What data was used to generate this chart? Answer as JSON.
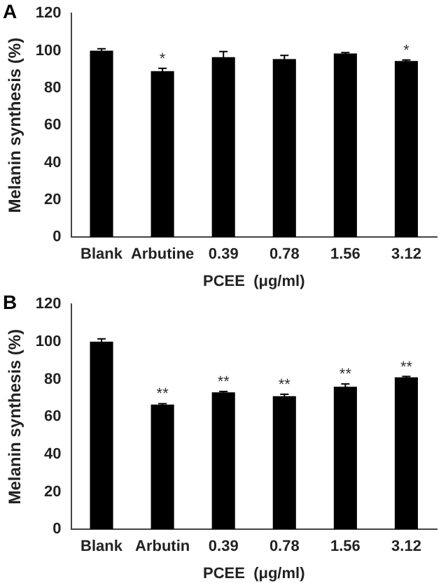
{
  "chart_data": [
    {
      "type": "bar",
      "title": "A",
      "xlabel": "PCEE  (μg/ml)",
      "ylabel": "Melanin synthesis (%)",
      "categories": [
        "Blank",
        "Arbutine",
        "0.39",
        "0.78",
        "1.56",
        "3.12"
      ],
      "values": [
        100,
        89,
        96.5,
        95.5,
        98.5,
        94.5
      ],
      "errors": [
        1,
        1.5,
        3,
        2,
        0.5,
        0.5
      ],
      "color": "#000000",
      "ylim": [
        0,
        120
      ],
      "yticks": [
        0,
        20,
        40,
        60,
        80,
        100,
        120
      ],
      "grid": false,
      "legend": false,
      "annotations": [
        {
          "text": "*",
          "x": "Arbutine",
          "y": 90.5
        },
        {
          "text": "*",
          "x": "3.12",
          "y": 95
        }
      ]
    },
    {
      "type": "bar",
      "title": "B",
      "xlabel": "PCEE  (μg/ml)",
      "ylabel": "Melanin synthesis (%)",
      "categories": [
        "Blank",
        "Arbutin",
        "0.39",
        "0.78",
        "1.56",
        "3.12"
      ],
      "values": [
        100,
        66.5,
        73,
        71,
        76,
        81
      ],
      "errors": [
        1.5,
        0.5,
        0.5,
        1,
        1.5,
        0.5
      ],
      "color": "#000000",
      "ylim": [
        0,
        120
      ],
      "yticks": [
        0,
        20,
        40,
        60,
        80,
        100,
        120
      ],
      "grid": false,
      "legend": false,
      "annotations": [
        {
          "text": "**",
          "x": "Arbutin",
          "y": 67
        },
        {
          "text": "**",
          "x": "0.39",
          "y": 73.5
        },
        {
          "text": "**",
          "x": "0.78",
          "y": 72
        },
        {
          "text": "**",
          "x": "1.56",
          "y": 77.5
        },
        {
          "text": "**",
          "x": "3.12",
          "y": 81.5
        }
      ]
    }
  ]
}
